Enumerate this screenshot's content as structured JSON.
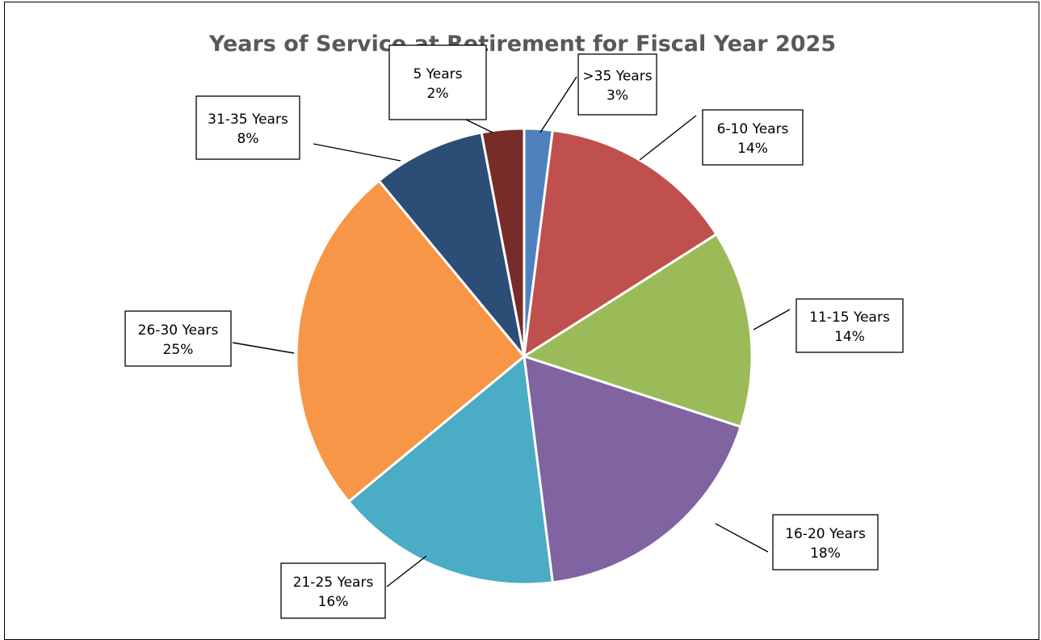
{
  "chart_data": {
    "type": "pie",
    "title": "Years of Service at Retirement for Fiscal Year 2025",
    "legend": "none",
    "start_angle_deg": 0,
    "direction": "clockwise",
    "slices": [
      {
        "label": "5 Years",
        "value": 2,
        "value_label": "2%",
        "color": "#4F81BD"
      },
      {
        "label": "6-10 Years",
        "value": 14,
        "value_label": "14%",
        "color": "#C0504D"
      },
      {
        "label": "11-15 Years",
        "value": 14,
        "value_label": "14%",
        "color": "#9BBB59"
      },
      {
        "label": "16-20 Years",
        "value": 18,
        "value_label": "18%",
        "color": "#8064A2"
      },
      {
        "label": "21-25 Years",
        "value": 16,
        "value_label": "16%",
        "color": "#4BACC6"
      },
      {
        "label": "26-30 Years",
        "value": 25,
        "value_label": "25%",
        "color": "#F79646"
      },
      {
        "label": "31-35 Years",
        "value": 8,
        "value_label": "8%",
        "color": "#2C4D75"
      },
      {
        "label": ">35 Years",
        "value": 3,
        "value_label": "3%",
        "color": "#772C2A"
      }
    ]
  }
}
